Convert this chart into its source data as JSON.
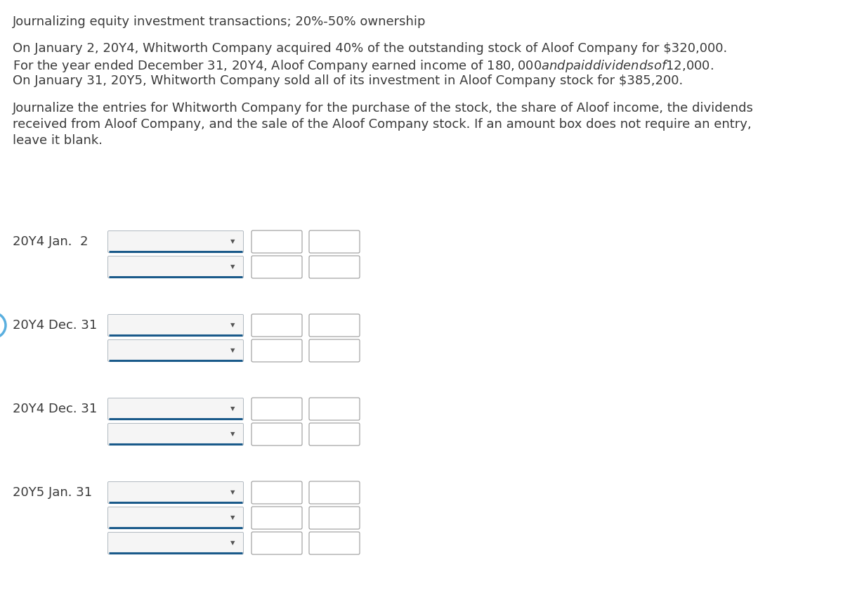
{
  "title": "Journalizing equity investment transactions; 20%-50% ownership",
  "paragraph1": "On January 2, 20Y4, Whitworth Company acquired 40% of the outstanding stock of Aloof Company for $320,000.",
  "paragraph2": "For the year ended December 31, 20Y4, Aloof Company earned income of $180,000 and paid dividends of $12,000.",
  "paragraph3": "On January 31, 20Y5, Whitworth Company sold all of its investment in Aloof Company stock for $385,200.",
  "paragraph4a": "Journalize the entries for Whitworth Company for the purchase of the stock, the share of Aloof income, the dividends",
  "paragraph4b": "received from Aloof Company, and the sale of the Aloof Company stock. If an amount box does not require an entry,",
  "paragraph4c": "leave it blank.",
  "bg_color": "#ffffff",
  "text_color": "#3a3a3a",
  "dropdown_border": "#b0b8c0",
  "box_border": "#999999",
  "line_color": "#1a5a8a",
  "circle_color": "#5aafdf",
  "font_size_title": 13,
  "font_size_body": 13,
  "entries": [
    {
      "date": "20Y4 Jan.  2",
      "rows": 2,
      "has_circle": false
    },
    {
      "date": "20Y4 Dec. 31",
      "rows": 2,
      "has_circle": true
    },
    {
      "date": "20Y4 Dec. 31",
      "rows": 2,
      "has_circle": false
    },
    {
      "date": "20Y5 Jan. 31",
      "rows": 3,
      "has_circle": false
    }
  ]
}
